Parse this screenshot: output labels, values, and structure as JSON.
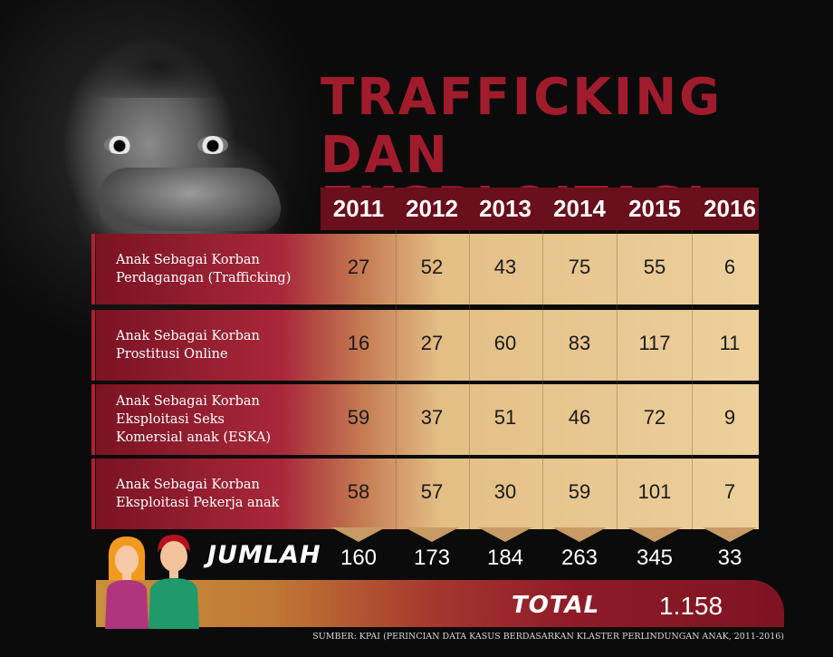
{
  "title_lines": [
    "TRAFFICKING",
    "DAN EKSPLOITASI"
  ],
  "colors": {
    "accent": "#a01c2c",
    "header_bg": "#6a0f1c",
    "cell_bg": "#edd09c",
    "total_gradient_start": "#c8903a",
    "total_gradient_end": "#7d1422"
  },
  "icons": [
    "child-photo",
    "girl-icon",
    "boy-icon"
  ],
  "chart_data": {
    "type": "table",
    "columns": [
      "2011",
      "2012",
      "2013",
      "2014",
      "2015",
      "2016"
    ],
    "rows": [
      {
        "label": "Anak Sebagai Korban\nPerdagangan (Trafficking)",
        "values": [
          "27",
          "52",
          "43",
          "75",
          "55",
          "6"
        ]
      },
      {
        "label": "Anak Sebagai Korban\nProstitusi Online",
        "values": [
          "16",
          "27",
          "60",
          "83",
          "117",
          "11"
        ]
      },
      {
        "label": "Anak Sebagai Korban\nEksploitasi  Seks\nKomersial  anak (ESKA)",
        "values": [
          "59",
          "37",
          "51",
          "46",
          "72",
          "9"
        ]
      },
      {
        "label": "Anak Sebagai Korban\nEksploitasi  Pekerja anak",
        "values": [
          "58",
          "57",
          "30",
          "59",
          "101",
          "7"
        ]
      }
    ],
    "totals_label": "JUMLAH",
    "totals": [
      "160",
      "173",
      "184",
      "263",
      "345",
      "33"
    ],
    "grand_total_label": "TOTAL",
    "grand_total": "1.158"
  },
  "source": "SUMBER: KPAI (PERINCIAN DATA KASUS BERDASARKAN KLASTER PERLINDUNGAN ANAK, 2011-2016)"
}
